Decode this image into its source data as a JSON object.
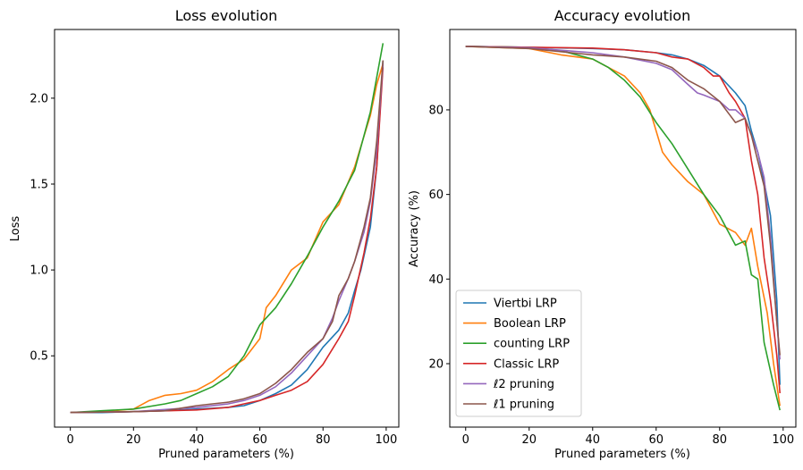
{
  "chart_data": [
    {
      "type": "line",
      "title": "Loss evolution",
      "xlabel": "Pruned parameters (%)",
      "ylabel": "Loss",
      "xlim": [
        -5,
        104
      ],
      "ylim": [
        0.085,
        2.4
      ],
      "xticks": [
        0,
        20,
        40,
        60,
        80,
        100
      ],
      "yticks": [
        0.5,
        1.0,
        1.5,
        2.0
      ],
      "ytick_labels": [
        "0.5",
        "1.0",
        "1.5",
        "2.0"
      ],
      "grid": false,
      "series": [
        {
          "name": "Viertbi LRP",
          "color": "#1f77b4",
          "x": [
            0,
            10,
            20,
            30,
            40,
            50,
            55,
            60,
            65,
            70,
            75,
            80,
            85,
            88,
            90,
            92,
            95,
            97,
            99
          ],
          "y": [
            0.17,
            0.17,
            0.175,
            0.18,
            0.19,
            0.2,
            0.21,
            0.24,
            0.28,
            0.33,
            0.42,
            0.55,
            0.65,
            0.75,
            0.88,
            1.0,
            1.25,
            1.6,
            2.22
          ]
        },
        {
          "name": "Boolean LRP",
          "color": "#ff7f0e",
          "x": [
            0,
            10,
            20,
            25,
            30,
            35,
            40,
            45,
            50,
            55,
            60,
            62,
            65,
            70,
            75,
            80,
            85,
            90,
            92,
            95,
            97,
            99
          ],
          "y": [
            0.17,
            0.175,
            0.19,
            0.24,
            0.27,
            0.28,
            0.3,
            0.35,
            0.42,
            0.48,
            0.6,
            0.78,
            0.85,
            1.0,
            1.07,
            1.28,
            1.38,
            1.6,
            1.72,
            1.9,
            2.08,
            2.2
          ]
        },
        {
          "name": "counting LRP",
          "color": "#2ca02c",
          "x": [
            0,
            10,
            20,
            30,
            35,
            40,
            45,
            50,
            55,
            60,
            65,
            70,
            75,
            80,
            85,
            90,
            95,
            99
          ],
          "y": [
            0.17,
            0.18,
            0.19,
            0.22,
            0.24,
            0.28,
            0.32,
            0.38,
            0.5,
            0.68,
            0.78,
            0.92,
            1.08,
            1.25,
            1.4,
            1.58,
            1.92,
            2.32
          ]
        },
        {
          "name": "Classic LRP",
          "color": "#d62728",
          "x": [
            0,
            20,
            40,
            50,
            55,
            60,
            65,
            70,
            75,
            80,
            85,
            88,
            90,
            93,
            95,
            97,
            99
          ],
          "y": [
            0.17,
            0.175,
            0.185,
            0.2,
            0.22,
            0.24,
            0.27,
            0.3,
            0.35,
            0.45,
            0.6,
            0.7,
            0.85,
            1.1,
            1.3,
            1.6,
            2.18
          ]
        },
        {
          "name": "ℓ2 pruning",
          "color": "#9467bd",
          "x": [
            0,
            20,
            40,
            50,
            55,
            60,
            65,
            70,
            75,
            80,
            83,
            85,
            88,
            90,
            93,
            95,
            97,
            99
          ],
          "y": [
            0.17,
            0.175,
            0.2,
            0.22,
            0.24,
            0.27,
            0.32,
            0.4,
            0.5,
            0.6,
            0.72,
            0.82,
            0.95,
            1.05,
            1.22,
            1.4,
            1.7,
            2.2
          ]
        },
        {
          "name": "ℓ1 pruning",
          "color": "#8c564b",
          "x": [
            0,
            20,
            30,
            40,
            45,
            50,
            55,
            60,
            65,
            70,
            75,
            80,
            83,
            85,
            88,
            90,
            93,
            95,
            97,
            99
          ],
          "y": [
            0.17,
            0.175,
            0.18,
            0.21,
            0.22,
            0.23,
            0.25,
            0.28,
            0.34,
            0.42,
            0.52,
            0.6,
            0.7,
            0.85,
            0.95,
            1.05,
            1.25,
            1.42,
            1.75,
            2.22
          ]
        }
      ]
    },
    {
      "type": "line",
      "title": "Accuracy evolution",
      "xlabel": "Pruned parameters (%)",
      "ylabel": "Accuracy (%)",
      "xlim": [
        -5,
        104
      ],
      "ylim": [
        5,
        99
      ],
      "xticks": [
        0,
        20,
        40,
        60,
        80,
        100
      ],
      "yticks": [
        20,
        40,
        60,
        80
      ],
      "ytick_labels": [
        "20",
        "40",
        "60",
        "80"
      ],
      "grid": false,
      "legend": "lower-left",
      "series": [
        {
          "name": "Viertbi LRP",
          "color": "#1f77b4",
          "x": [
            0,
            20,
            40,
            50,
            60,
            65,
            70,
            75,
            80,
            85,
            88,
            90,
            92,
            94,
            96,
            98,
            99
          ],
          "y": [
            95,
            94.8,
            94.5,
            94.2,
            93.5,
            93,
            92,
            90.5,
            88,
            84,
            81,
            75,
            70,
            63,
            55,
            35,
            15
          ]
        },
        {
          "name": "Boolean LRP",
          "color": "#ff7f0e",
          "x": [
            0,
            20,
            30,
            40,
            45,
            50,
            55,
            58,
            60,
            62,
            65,
            70,
            75,
            80,
            85,
            88,
            90,
            92,
            95,
            97,
            99
          ],
          "y": [
            95,
            94.5,
            93,
            92,
            90,
            88,
            84,
            80,
            75,
            70,
            67,
            63,
            60,
            53,
            51,
            48,
            52,
            43,
            32,
            20,
            10
          ]
        },
        {
          "name": "counting LRP",
          "color": "#2ca02c",
          "x": [
            0,
            20,
            30,
            40,
            45,
            50,
            55,
            60,
            65,
            70,
            75,
            80,
            85,
            88,
            90,
            92,
            94,
            97,
            99
          ],
          "y": [
            95,
            94.8,
            94,
            92,
            90,
            87,
            83,
            77,
            72,
            66,
            60,
            55,
            48,
            49,
            41,
            40,
            25,
            15,
            9
          ]
        },
        {
          "name": "Classic LRP",
          "color": "#d62728",
          "x": [
            0,
            20,
            40,
            50,
            60,
            65,
            70,
            75,
            78,
            80,
            83,
            85,
            88,
            90,
            92,
            94,
            96,
            98,
            99
          ],
          "y": [
            95,
            94.8,
            94.6,
            94.2,
            93.5,
            92.5,
            92,
            90,
            88,
            88,
            84,
            82,
            78,
            68,
            60,
            45,
            35,
            22,
            13
          ]
        },
        {
          "name": "ℓ2 pruning",
          "color": "#9467bd",
          "x": [
            0,
            20,
            40,
            50,
            60,
            65,
            70,
            73,
            75,
            80,
            83,
            85,
            88,
            90,
            92,
            94,
            96,
            98,
            99
          ],
          "y": [
            95,
            94.7,
            93.5,
            92.5,
            91,
            89.5,
            86,
            84,
            83.5,
            82,
            80,
            80,
            78,
            74,
            70,
            64,
            50,
            30,
            21
          ]
        },
        {
          "name": "ℓ1 pruning",
          "color": "#8c564b",
          "x": [
            0,
            20,
            40,
            50,
            60,
            65,
            70,
            75,
            80,
            83,
            85,
            88,
            90,
            92,
            94,
            96,
            98,
            99
          ],
          "y": [
            95,
            94.5,
            93,
            92.5,
            91.5,
            90,
            87,
            85,
            82,
            79,
            77,
            78,
            74,
            68,
            62,
            48,
            30,
            22
          ]
        }
      ]
    }
  ]
}
